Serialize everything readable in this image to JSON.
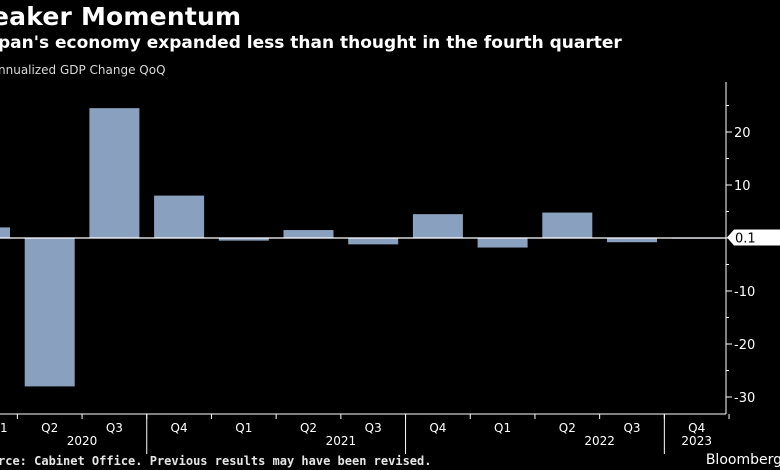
{
  "title": "eaker Momentum",
  "subtitle": "pan's economy expanded less than thought in the fourth quarter",
  "legend_label": "nnualized GDP Change QoQ",
  "source": "rce: Cabinet Office. Previous results may have been revised.",
  "brand": "Bloomberg",
  "colors": {
    "bar": "#8aa0bf",
    "background": "#000000",
    "text": "#ffffff",
    "callout_bg": "#ffffff"
  },
  "chart_data": {
    "type": "bar",
    "categories": [
      "Q1",
      "Q2",
      "Q3",
      "Q4",
      "Q1",
      "Q2",
      "Q3",
      "Q4",
      "Q1",
      "Q2",
      "Q3",
      "Q4"
    ],
    "category_labels": [
      "1",
      "Q2",
      "Q3",
      "Q4",
      "Q1",
      "Q2",
      "Q3",
      "Q4",
      "Q1",
      "Q2",
      "Q3",
      "Q4"
    ],
    "values": [
      2.0,
      -28.0,
      24.5,
      8.0,
      -0.5,
      1.5,
      -1.2,
      4.5,
      -1.8,
      4.8,
      -0.8,
      0.1
    ],
    "year_labels": [
      {
        "label": "2020",
        "index": 1.5
      },
      {
        "label": "2021",
        "index": 5.5
      },
      {
        "label": "2022",
        "index": 9.5
      },
      {
        "label": "2023",
        "index": 11
      }
    ],
    "ylim": [
      -30,
      28
    ],
    "yticks": [
      20,
      10,
      0,
      -10,
      -20,
      -30
    ],
    "ytick_labels": [
      "20",
      "10",
      "",
      "-10",
      "-20",
      "-30"
    ],
    "last_value_callout": "0.1",
    "axis_position": "right",
    "grid": false,
    "xlabel": "",
    "ylabel": ""
  }
}
